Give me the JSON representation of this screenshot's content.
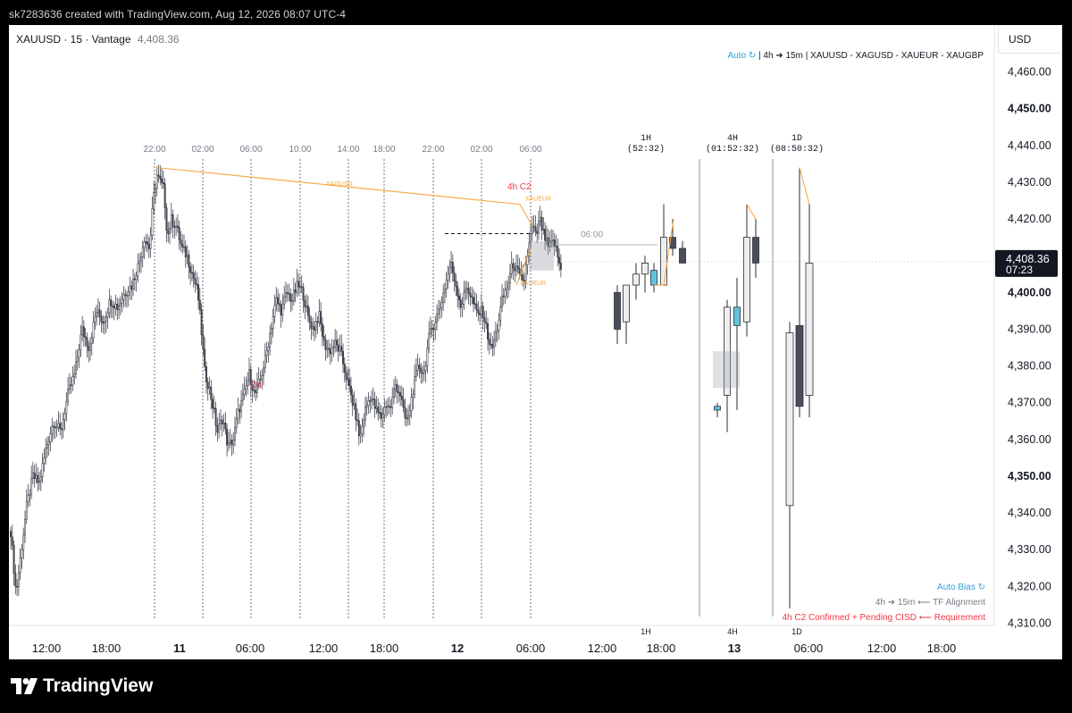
{
  "caption": "sk7283636 created with TradingView.com, Aug 12, 2026 08:07 UTC-4",
  "symbol": {
    "name": "XAUUSD · 15 · Vantage",
    "price": "4,408.36"
  },
  "currency_button": "USD",
  "indicator_header": {
    "auto": "Auto ↻",
    "rest": " | 4h ➜ 15m | XAUUSD - XAGUSD - XAUEUR - XAUGBP"
  },
  "bottom_panel": {
    "auto_bias": "Auto Bias ↻",
    "alignment": "4h ➜ 15m ⟵ TF Alignment",
    "requirement": "4h C2 Confirmed + Pending CISD ⟵ Requirement"
  },
  "price_label": {
    "price": "4,408.36",
    "countdown": "07:23"
  },
  "colors": {
    "orange": "#f7a53b",
    "red": "#f23645",
    "blue": "#2ea2d8",
    "candle_up_fill": "#ffffff",
    "candle_dark": "#4a4e59",
    "cyan_candle": "#5ec3dd"
  },
  "annotations": {
    "xagusd": "XAGUSD",
    "xaueur": "XAUEUR",
    "xaueur_low": "XAUEUR",
    "c4": "C4",
    "four_h_c2": "4h  C2",
    "level_06": "06:00"
  },
  "session_labels": [
    "22:00",
    "02:00",
    "06:00",
    "10:00",
    "14:00",
    "18:00",
    "22:00",
    "02:00",
    "06:00"
  ],
  "htf_panels": [
    {
      "tf": "1H",
      "timer": "(52:32)",
      "bottom": "1H"
    },
    {
      "tf": "4H",
      "timer": "(01:52:32)",
      "bottom": "4H"
    },
    {
      "tf": "1D",
      "timer": "(08:50:32)",
      "bottom": "1D"
    }
  ],
  "footer": {
    "brand": "TradingView"
  },
  "chart_data": {
    "type": "candlestick",
    "symbol": "XAUUSD",
    "interval": "15",
    "ylim": [
      4305,
      4465
    ],
    "y_ticks": [
      {
        "v": 4460,
        "label": "4,460.00",
        "bold": false
      },
      {
        "v": 4450,
        "label": "4,450.00",
        "bold": true
      },
      {
        "v": 4440,
        "label": "4,440.00",
        "bold": false
      },
      {
        "v": 4430,
        "label": "4,430.00",
        "bold": false
      },
      {
        "v": 4420,
        "label": "4,420.00",
        "bold": false
      },
      {
        "v": 4410,
        "label": "4,410.00",
        "bold": false
      },
      {
        "v": 4400,
        "label": "4,400.00",
        "bold": true
      },
      {
        "v": 4390,
        "label": "4,390.00",
        "bold": false
      },
      {
        "v": 4380,
        "label": "4,380.00",
        "bold": false
      },
      {
        "v": 4370,
        "label": "4,370.00",
        "bold": false
      },
      {
        "v": 4360,
        "label": "4,360.00",
        "bold": false
      },
      {
        "v": 4350,
        "label": "4,350.00",
        "bold": true
      },
      {
        "v": 4340,
        "label": "4,340.00",
        "bold": false
      },
      {
        "v": 4330,
        "label": "4,330.00",
        "bold": false
      },
      {
        "v": 4320,
        "label": "4,320.00",
        "bold": false
      },
      {
        "v": 4310,
        "label": "4,310.00",
        "bold": false
      }
    ],
    "x_ticks": [
      {
        "label": "12:00",
        "bold": false
      },
      {
        "label": "18:00",
        "bold": false
      },
      {
        "label": "11",
        "bold": true
      },
      {
        "label": "06:00",
        "bold": false
      },
      {
        "label": "12:00",
        "bold": false
      },
      {
        "label": "18:00",
        "bold": false
      },
      {
        "label": "12",
        "bold": true
      },
      {
        "label": "06:00",
        "bold": false
      },
      {
        "label": "12:00",
        "bold": false
      },
      {
        "label": "18:00",
        "bold": false
      },
      {
        "label": "13",
        "bold": true
      },
      {
        "label": "06:00",
        "bold": false
      },
      {
        "label": "12:00",
        "bold": false
      },
      {
        "label": "18:00",
        "bold": false
      }
    ],
    "price_path": [
      [
        0,
        4335
      ],
      [
        6,
        4318
      ],
      [
        12,
        4330
      ],
      [
        18,
        4342
      ],
      [
        25,
        4350
      ],
      [
        32,
        4348
      ],
      [
        40,
        4358
      ],
      [
        48,
        4365
      ],
      [
        56,
        4362
      ],
      [
        64,
        4372
      ],
      [
        72,
        4378
      ],
      [
        80,
        4390
      ],
      [
        88,
        4385
      ],
      [
        96,
        4395
      ],
      [
        104,
        4392
      ],
      [
        112,
        4398
      ],
      [
        120,
        4396
      ],
      [
        128,
        4400
      ],
      [
        136,
        4402
      ],
      [
        144,
        4408
      ],
      [
        150,
        4415
      ],
      [
        156,
        4412
      ],
      [
        160,
        4425
      ],
      [
        164,
        4432
      ],
      [
        168,
        4430
      ],
      [
        172,
        4428
      ],
      [
        176,
        4415
      ],
      [
        180,
        4420
      ],
      [
        186,
        4418
      ],
      [
        192,
        4412
      ],
      [
        198,
        4410
      ],
      [
        204,
        4405
      ],
      [
        210,
        4400
      ],
      [
        214,
        4390
      ],
      [
        218,
        4378
      ],
      [
        222,
        4375
      ],
      [
        228,
        4368
      ],
      [
        232,
        4362
      ],
      [
        238,
        4366
      ],
      [
        244,
        4358
      ],
      [
        250,
        4360
      ],
      [
        256,
        4368
      ],
      [
        262,
        4372
      ],
      [
        268,
        4378
      ],
      [
        274,
        4372
      ],
      [
        280,
        4376
      ],
      [
        286,
        4382
      ],
      [
        292,
        4390
      ],
      [
        298,
        4398
      ],
      [
        304,
        4395
      ],
      [
        310,
        4400
      ],
      [
        316,
        4398
      ],
      [
        322,
        4402
      ],
      [
        328,
        4400
      ],
      [
        334,
        4393
      ],
      [
        340,
        4390
      ],
      [
        346,
        4394
      ],
      [
        352,
        4386
      ],
      [
        358,
        4384
      ],
      [
        364,
        4386
      ],
      [
        370,
        4384
      ],
      [
        376,
        4378
      ],
      [
        382,
        4372
      ],
      [
        388,
        4366
      ],
      [
        392,
        4360
      ],
      [
        398,
        4368
      ],
      [
        404,
        4372
      ],
      [
        410,
        4368
      ],
      [
        416,
        4366
      ],
      [
        422,
        4370
      ],
      [
        426,
        4368
      ],
      [
        432,
        4375
      ],
      [
        438,
        4372
      ],
      [
        442,
        4366
      ],
      [
        446,
        4365
      ],
      [
        452,
        4374
      ],
      [
        458,
        4380
      ],
      [
        464,
        4378
      ],
      [
        470,
        4388
      ],
      [
        476,
        4392
      ],
      [
        482,
        4396
      ],
      [
        488,
        4402
      ],
      [
        494,
        4408
      ],
      [
        500,
        4402
      ],
      [
        506,
        4396
      ],
      [
        512,
        4402
      ],
      [
        518,
        4398
      ],
      [
        524,
        4394
      ],
      [
        530,
        4395
      ],
      [
        536,
        4388
      ],
      [
        540,
        4384
      ],
      [
        546,
        4390
      ],
      [
        552,
        4398
      ],
      [
        558,
        4402
      ],
      [
        564,
        4408
      ],
      [
        570,
        4405
      ],
      [
        576,
        4402
      ],
      [
        580,
        4410
      ],
      [
        586,
        4418
      ],
      [
        590,
        4415
      ],
      [
        594,
        4420
      ],
      [
        598,
        4416
      ],
      [
        604,
        4412
      ],
      [
        610,
        4414
      ],
      [
        614,
        4410
      ],
      [
        618,
        4406
      ],
      [
        620,
        4408
      ]
    ],
    "htf_1h": [
      {
        "o": 4400,
        "h": 4402,
        "l": 4386,
        "c": 4390
      },
      {
        "o": 4392,
        "h": 4400,
        "l": 4386,
        "c": 4402
      },
      {
        "o": 4402,
        "h": 4408,
        "l": 4398,
        "c": 4405
      },
      {
        "o": 4405,
        "h": 4410,
        "l": 4400,
        "c": 4408
      },
      {
        "o": 4402,
        "h": 4408,
        "l": 4400,
        "c": 4406,
        "cyan": true
      },
      {
        "o": 4402,
        "h": 4424,
        "l": 4402,
        "c": 4415
      },
      {
        "o": 4415,
        "h": 4420,
        "l": 4410,
        "c": 4412
      },
      {
        "o": 4412,
        "h": 4414,
        "l": 4408,
        "c": 4408
      }
    ],
    "htf_4h": [
      {
        "o": 4368,
        "h": 4370,
        "l": 4366,
        "c": 4369,
        "cyan": true
      },
      {
        "o": 4372,
        "h": 4398,
        "l": 4362,
        "c": 4396
      },
      {
        "o": 4391,
        "h": 4404,
        "l": 4368,
        "c": 4396,
        "cyan": true
      },
      {
        "o": 4392,
        "h": 4424,
        "l": 4388,
        "c": 4415
      },
      {
        "o": 4415,
        "h": 4420,
        "l": 4404,
        "c": 4408
      }
    ],
    "htf_1d": [
      {
        "o": 4342,
        "h": 4392,
        "l": 4314,
        "c": 4389
      },
      {
        "o": 4391,
        "h": 4434,
        "l": 4366,
        "c": 4369
      },
      {
        "o": 4372,
        "h": 4424,
        "l": 4366,
        "c": 4408
      }
    ]
  }
}
